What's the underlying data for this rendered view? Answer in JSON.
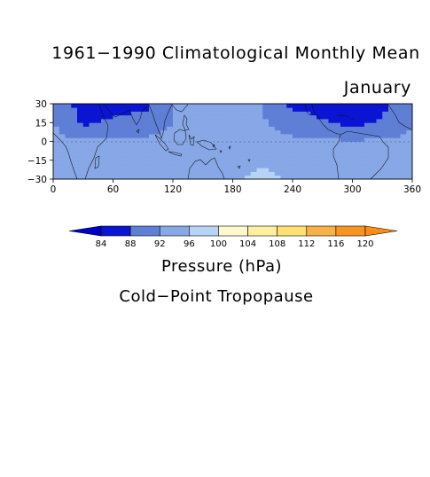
{
  "chart_data": {
    "type": "heatmap",
    "title": "1961−1990 Climatological Monthly Mean",
    "subtitle": "January",
    "variable_label": "Pressure (hPa)",
    "field_label": "Cold−Point Tropopause",
    "x_ticks": [
      "0",
      "60",
      "120",
      "180",
      "240",
      "300",
      "360"
    ],
    "y_ticks": [
      "30",
      "15",
      "0",
      "−15",
      "−30"
    ],
    "xlim": [
      0,
      360
    ],
    "ylim": [
      -30,
      30
    ],
    "contour_levels": [
      84,
      88,
      92,
      96,
      100,
      104,
      108,
      112,
      116,
      120
    ],
    "colorbar_labels": [
      "84",
      "88",
      "92",
      "96",
      "100",
      "104",
      "108",
      "112",
      "116",
      "120"
    ],
    "colors": [
      "#0000c8",
      "#0a14d2",
      "#5f7fd6",
      "#87a7e6",
      "#b7d4f6",
      "#fff8cc",
      "#fff0a0",
      "#ffe070",
      "#f8b048",
      "#f89520",
      "#ff8c14"
    ],
    "lons": [
      0,
      30,
      60,
      90,
      120,
      150,
      180,
      210,
      240,
      270,
      300,
      330,
      360
    ],
    "lats": [
      -30,
      -15,
      0,
      15,
      30
    ],
    "pressure": [
      [
        93.6,
        93.5,
        93.6,
        93.6,
        93.5,
        93.5,
        93.6,
        99.5,
        93.6,
        93.6,
        93.5,
        93.6,
        93.6
      ],
      [
        93.0,
        93.0,
        93.2,
        93.0,
        93.0,
        93.0,
        93.2,
        93.2,
        93.0,
        93.0,
        92.8,
        93.0,
        93.0
      ],
      [
        92.6,
        92.6,
        92.6,
        92.5,
        92.5,
        92.5,
        92.6,
        92.6,
        92.5,
        92.5,
        92.5,
        92.6,
        92.6
      ],
      [
        92.3,
        87.0,
        88.8,
        90.5,
        92.1,
        92.2,
        92.3,
        92.2,
        91.0,
        88.5,
        86.5,
        88.5,
        92.0
      ],
      [
        92.3,
        86.0,
        86.5,
        86.0,
        92.2,
        92.2,
        92.2,
        92.3,
        86.5,
        86.0,
        86.0,
        87.0,
        92.3
      ]
    ]
  }
}
